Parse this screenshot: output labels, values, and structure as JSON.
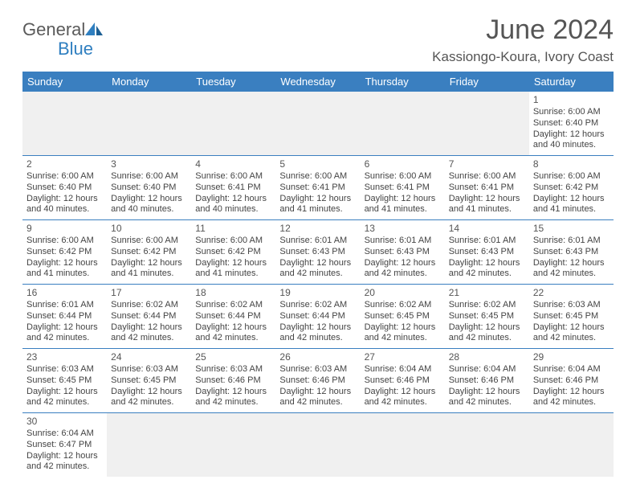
{
  "logo": {
    "text1": "General",
    "text2": "Blue"
  },
  "title": "June 2024",
  "location": "Kassiongo-Koura, Ivory Coast",
  "colors": {
    "header_bg": "#3a7fc0",
    "header_text": "#ffffff",
    "rule": "#3a7fc0",
    "blank_bg": "#f0f0f0",
    "body_text": "#444444",
    "logo_gray": "#5a5a5a",
    "logo_blue": "#2f7fc0"
  },
  "day_headers": [
    "Sunday",
    "Monday",
    "Tuesday",
    "Wednesday",
    "Thursday",
    "Friday",
    "Saturday"
  ],
  "weeks": [
    [
      {
        "blank": true
      },
      {
        "blank": true
      },
      {
        "blank": true
      },
      {
        "blank": true
      },
      {
        "blank": true
      },
      {
        "blank": true
      },
      {
        "num": "1",
        "sunrise": "Sunrise: 6:00 AM",
        "sunset": "Sunset: 6:40 PM",
        "day1": "Daylight: 12 hours",
        "day2": "and 40 minutes."
      }
    ],
    [
      {
        "num": "2",
        "sunrise": "Sunrise: 6:00 AM",
        "sunset": "Sunset: 6:40 PM",
        "day1": "Daylight: 12 hours",
        "day2": "and 40 minutes."
      },
      {
        "num": "3",
        "sunrise": "Sunrise: 6:00 AM",
        "sunset": "Sunset: 6:40 PM",
        "day1": "Daylight: 12 hours",
        "day2": "and 40 minutes."
      },
      {
        "num": "4",
        "sunrise": "Sunrise: 6:00 AM",
        "sunset": "Sunset: 6:41 PM",
        "day1": "Daylight: 12 hours",
        "day2": "and 40 minutes."
      },
      {
        "num": "5",
        "sunrise": "Sunrise: 6:00 AM",
        "sunset": "Sunset: 6:41 PM",
        "day1": "Daylight: 12 hours",
        "day2": "and 41 minutes."
      },
      {
        "num": "6",
        "sunrise": "Sunrise: 6:00 AM",
        "sunset": "Sunset: 6:41 PM",
        "day1": "Daylight: 12 hours",
        "day2": "and 41 minutes."
      },
      {
        "num": "7",
        "sunrise": "Sunrise: 6:00 AM",
        "sunset": "Sunset: 6:41 PM",
        "day1": "Daylight: 12 hours",
        "day2": "and 41 minutes."
      },
      {
        "num": "8",
        "sunrise": "Sunrise: 6:00 AM",
        "sunset": "Sunset: 6:42 PM",
        "day1": "Daylight: 12 hours",
        "day2": "and 41 minutes."
      }
    ],
    [
      {
        "num": "9",
        "sunrise": "Sunrise: 6:00 AM",
        "sunset": "Sunset: 6:42 PM",
        "day1": "Daylight: 12 hours",
        "day2": "and 41 minutes."
      },
      {
        "num": "10",
        "sunrise": "Sunrise: 6:00 AM",
        "sunset": "Sunset: 6:42 PM",
        "day1": "Daylight: 12 hours",
        "day2": "and 41 minutes."
      },
      {
        "num": "11",
        "sunrise": "Sunrise: 6:00 AM",
        "sunset": "Sunset: 6:42 PM",
        "day1": "Daylight: 12 hours",
        "day2": "and 41 minutes."
      },
      {
        "num": "12",
        "sunrise": "Sunrise: 6:01 AM",
        "sunset": "Sunset: 6:43 PM",
        "day1": "Daylight: 12 hours",
        "day2": "and 42 minutes."
      },
      {
        "num": "13",
        "sunrise": "Sunrise: 6:01 AM",
        "sunset": "Sunset: 6:43 PM",
        "day1": "Daylight: 12 hours",
        "day2": "and 42 minutes."
      },
      {
        "num": "14",
        "sunrise": "Sunrise: 6:01 AM",
        "sunset": "Sunset: 6:43 PM",
        "day1": "Daylight: 12 hours",
        "day2": "and 42 minutes."
      },
      {
        "num": "15",
        "sunrise": "Sunrise: 6:01 AM",
        "sunset": "Sunset: 6:43 PM",
        "day1": "Daylight: 12 hours",
        "day2": "and 42 minutes."
      }
    ],
    [
      {
        "num": "16",
        "sunrise": "Sunrise: 6:01 AM",
        "sunset": "Sunset: 6:44 PM",
        "day1": "Daylight: 12 hours",
        "day2": "and 42 minutes."
      },
      {
        "num": "17",
        "sunrise": "Sunrise: 6:02 AM",
        "sunset": "Sunset: 6:44 PM",
        "day1": "Daylight: 12 hours",
        "day2": "and 42 minutes."
      },
      {
        "num": "18",
        "sunrise": "Sunrise: 6:02 AM",
        "sunset": "Sunset: 6:44 PM",
        "day1": "Daylight: 12 hours",
        "day2": "and 42 minutes."
      },
      {
        "num": "19",
        "sunrise": "Sunrise: 6:02 AM",
        "sunset": "Sunset: 6:44 PM",
        "day1": "Daylight: 12 hours",
        "day2": "and 42 minutes."
      },
      {
        "num": "20",
        "sunrise": "Sunrise: 6:02 AM",
        "sunset": "Sunset: 6:45 PM",
        "day1": "Daylight: 12 hours",
        "day2": "and 42 minutes."
      },
      {
        "num": "21",
        "sunrise": "Sunrise: 6:02 AM",
        "sunset": "Sunset: 6:45 PM",
        "day1": "Daylight: 12 hours",
        "day2": "and 42 minutes."
      },
      {
        "num": "22",
        "sunrise": "Sunrise: 6:03 AM",
        "sunset": "Sunset: 6:45 PM",
        "day1": "Daylight: 12 hours",
        "day2": "and 42 minutes."
      }
    ],
    [
      {
        "num": "23",
        "sunrise": "Sunrise: 6:03 AM",
        "sunset": "Sunset: 6:45 PM",
        "day1": "Daylight: 12 hours",
        "day2": "and 42 minutes."
      },
      {
        "num": "24",
        "sunrise": "Sunrise: 6:03 AM",
        "sunset": "Sunset: 6:45 PM",
        "day1": "Daylight: 12 hours",
        "day2": "and 42 minutes."
      },
      {
        "num": "25",
        "sunrise": "Sunrise: 6:03 AM",
        "sunset": "Sunset: 6:46 PM",
        "day1": "Daylight: 12 hours",
        "day2": "and 42 minutes."
      },
      {
        "num": "26",
        "sunrise": "Sunrise: 6:03 AM",
        "sunset": "Sunset: 6:46 PM",
        "day1": "Daylight: 12 hours",
        "day2": "and 42 minutes."
      },
      {
        "num": "27",
        "sunrise": "Sunrise: 6:04 AM",
        "sunset": "Sunset: 6:46 PM",
        "day1": "Daylight: 12 hours",
        "day2": "and 42 minutes."
      },
      {
        "num": "28",
        "sunrise": "Sunrise: 6:04 AM",
        "sunset": "Sunset: 6:46 PM",
        "day1": "Daylight: 12 hours",
        "day2": "and 42 minutes."
      },
      {
        "num": "29",
        "sunrise": "Sunrise: 6:04 AM",
        "sunset": "Sunset: 6:46 PM",
        "day1": "Daylight: 12 hours",
        "day2": "and 42 minutes."
      }
    ],
    [
      {
        "num": "30",
        "sunrise": "Sunrise: 6:04 AM",
        "sunset": "Sunset: 6:47 PM",
        "day1": "Daylight: 12 hours",
        "day2": "and 42 minutes."
      },
      {
        "blank": true
      },
      {
        "blank": true
      },
      {
        "blank": true
      },
      {
        "blank": true
      },
      {
        "blank": true
      },
      {
        "blank": true
      }
    ]
  ]
}
